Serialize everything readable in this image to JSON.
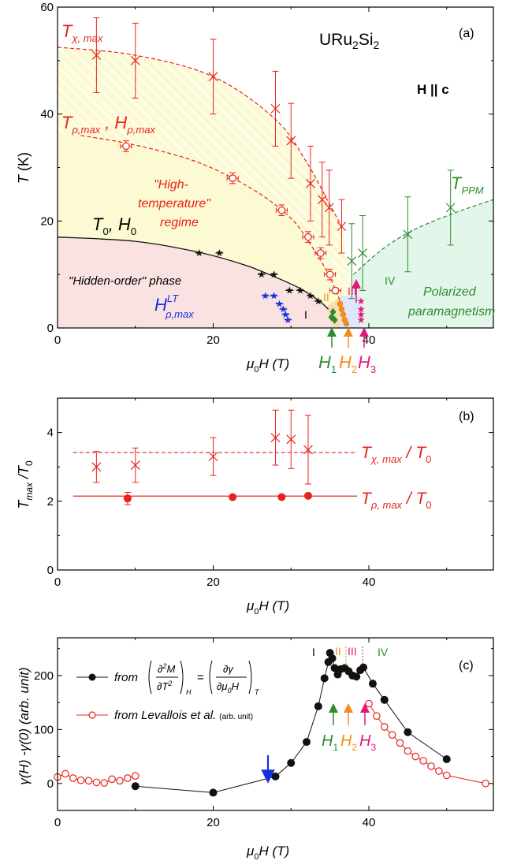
{
  "colors": {
    "red": "#e8221b",
    "green": "#2e8b2e",
    "blue": "#1431e0",
    "orange": "#f28c1e",
    "magenta": "#e0197d",
    "black": "#111111",
    "pink_fill": "#fbe2e2",
    "yellow_fill": "#fbfad2",
    "green_fill": "#e3f6ea",
    "blue_fill": "#dde6fb"
  },
  "chart_data": [
    {
      "panel": "(a)",
      "type": "scatter",
      "title": "URu2Si2",
      "field_label": "H || c",
      "xlabel": "μ0H (T)",
      "ylabel": "T (K)",
      "xlim": [
        0,
        56
      ],
      "ylim": [
        0,
        60
      ],
      "xticks": [
        "0",
        "20",
        "40"
      ],
      "yticks": [
        "0",
        "20",
        "40",
        "60"
      ],
      "region_labels": [
        "\"High-",
        "temperature\"",
        "regime",
        "\"Hidden-order\" phase",
        "Polarized",
        "paramagnetism"
      ],
      "phase_labels": [
        "I",
        "II",
        "III",
        "IV"
      ],
      "arrow_labels": [
        "H1",
        "H2",
        "H3"
      ],
      "series": [
        {
          "name": "Tχ,max",
          "marker": "x",
          "color": "red",
          "x": [
            5,
            10,
            20,
            28,
            30,
            32.5,
            34,
            34.9,
            36.5
          ],
          "y": [
            51,
            50,
            47,
            41,
            35,
            27,
            24,
            22.5,
            19
          ],
          "yerr": [
            7,
            7,
            7,
            7,
            7,
            7,
            7,
            7,
            5
          ]
        },
        {
          "name": "Tρ,max , Hρ,max",
          "marker": "open-circle",
          "color": "red",
          "x": [
            8.8,
            22.5,
            28.8,
            32.2,
            33.8,
            35,
            35.7
          ],
          "y": [
            34,
            28,
            22,
            17,
            14,
            10,
            7
          ],
          "yerr": [
            1,
            1,
            1,
            1,
            1,
            1,
            0.5
          ]
        },
        {
          "name": "T0, H0",
          "marker": "star",
          "color": "black",
          "x": [
            18.2,
            20.8,
            26.2,
            27.8,
            29.8,
            31.2,
            32.5,
            33.5
          ],
          "y": [
            14,
            14,
            10,
            10,
            7,
            7,
            6,
            5
          ]
        },
        {
          "name": "Hρ,max LT",
          "marker": "star",
          "color": "blue",
          "x": [
            26.7,
            27.8,
            28.5,
            29.0,
            29.3,
            29.6
          ],
          "y": [
            6,
            6,
            4.5,
            3.5,
            2.5,
            1.5
          ]
        },
        {
          "name": "TPPM",
          "marker": "x",
          "color": "green",
          "x": [
            37.8,
            39.2,
            45,
            50.5
          ],
          "y": [
            12.5,
            14,
            17.5,
            22.5
          ],
          "yerr": [
            7,
            7,
            7,
            7
          ]
        },
        {
          "name": "H1",
          "marker": "diamond",
          "color": "green",
          "x": [
            35.2,
            35.4,
            35.6
          ],
          "y": [
            2,
            3,
            1.5
          ]
        },
        {
          "name": "H2",
          "marker": "dot",
          "color": "orange",
          "x": [
            36.3,
            36.5,
            36.7,
            36.9,
            37.1
          ],
          "y": [
            4.5,
            3.5,
            2.5,
            1.5,
            0.8
          ]
        },
        {
          "name": "H3",
          "marker": "star",
          "color": "magenta",
          "x": [
            39,
            39,
            39,
            39
          ],
          "y": [
            5,
            3.5,
            2.5,
            1.5
          ]
        }
      ],
      "curves": {
        "Tχ,max": {
          "x": [
            0,
            10,
            20,
            28,
            32,
            35,
            36.5
          ],
          "y": [
            52.5,
            51,
            47,
            39,
            31,
            23,
            19
          ]
        },
        "Tρ,max": {
          "x": [
            3,
            10,
            18,
            25,
            30,
            33,
            35,
            36.3
          ],
          "y": [
            36,
            34.2,
            31,
            26,
            20.5,
            14.5,
            9.5,
            5
          ]
        },
        "T0": {
          "x": [
            0,
            10,
            18,
            24,
            28,
            31,
            33.5,
            34.8
          ],
          "y": [
            17,
            16.2,
            14.2,
            11.8,
            9.5,
            7.5,
            5.2,
            3.5
          ]
        },
        "TPPM": {
          "x": [
            38,
            42,
            46,
            51,
            56
          ],
          "y": [
            10,
            15,
            18.5,
            21.5,
            24
          ]
        }
      },
      "labels": {
        "tchi": "T",
        "tchi_sub": "χ, max",
        "trho": "T",
        "trho_sub": "ρ,max",
        "trho_mid": " , H",
        "hrho_sub": "ρ,max",
        "t0": "T",
        "t0_sub": "0",
        "t0_mid": ", H",
        "h0_sub": "0",
        "hlt": "H",
        "hlt_sup": "LT",
        "hlt_sub": "ρ,max",
        "tppm": "T",
        "tppm_sub": "PPM",
        "h1": "H",
        "h1_sub": "1",
        "h2": "H",
        "h2_sub": "2",
        "h3": "H",
        "h3_sub": "3",
        "xlabel_mu": "μ",
        "xlabel_sub": "0",
        "xlabel_rest": "H (T)",
        "ylabel_t": "T",
        "ylabel_unit": " (K)"
      }
    },
    {
      "panel": "(b)",
      "type": "scatter",
      "xlabel": "μ0H (T)",
      "ylabel": "Tmax / T0",
      "xlim": [
        0,
        56
      ],
      "ylim": [
        0,
        5
      ],
      "xticks": [
        "0",
        "20",
        "40"
      ],
      "yticks": [
        "0",
        "2",
        "4"
      ],
      "series": [
        {
          "name": "Tχ, max / T0",
          "marker": "x",
          "color": "red",
          "x": [
            5,
            10,
            20,
            28,
            30,
            32.2
          ],
          "y": [
            3.0,
            3.05,
            3.3,
            3.85,
            3.8,
            3.5
          ],
          "yerr": [
            0.45,
            0.5,
            0.55,
            0.8,
            0.85,
            1.0
          ],
          "mean": 3.42
        },
        {
          "name": "Tρ, max / T0",
          "marker": "filled-circle",
          "color": "red",
          "x": [
            9,
            22.5,
            28.8,
            32.2
          ],
          "y": [
            2.08,
            2.12,
            2.12,
            2.16
          ],
          "yerr": [
            0.18,
            0,
            0,
            0
          ],
          "mean": 2.15
        }
      ],
      "labels": {
        "lchi": "T",
        "lchi_sub": "χ, max",
        "lchi_rest": " / T",
        "lchi_sub0": "0",
        "lrho": "T",
        "lrho_sub": "ρ, max",
        "lrho_rest": " / T",
        "lrho_sub0": "0",
        "ylab_t": "T",
        "ylab_max": "max",
        "ylab_rest": " /T",
        "ylab_0": "0"
      }
    },
    {
      "panel": "(c)",
      "type": "line",
      "xlabel": "μ0H (T)",
      "ylabel": "γ(H) - γ(0)  (arb. unit)",
      "xlim": [
        0,
        56
      ],
      "ylim": [
        -50,
        270
      ],
      "xticks": [
        "0",
        "20",
        "40"
      ],
      "yticks": [
        "0",
        "100",
        "200"
      ],
      "phase_labels": [
        "I",
        "II",
        "III",
        "IV"
      ],
      "arrow_labels": [
        "H1",
        "H2",
        "H3"
      ],
      "series": [
        {
          "name": "from (∂²M/∂T²)H = (∂γ/∂μ0H)T",
          "marker": "filled-circle",
          "color": "black",
          "x": [
            10,
            20,
            28,
            30,
            32,
            33.5,
            34.3,
            34.8,
            35.0,
            35.3,
            35.6,
            36.0,
            36.4,
            36.9,
            37.4,
            37.9,
            38.4,
            38.9,
            39.3,
            40.5,
            42,
            45,
            50
          ],
          "y": [
            -5,
            -17,
            13,
            38,
            77,
            143,
            195,
            225,
            242,
            232,
            214,
            202,
            212,
            214,
            208,
            200,
            198,
            210,
            215,
            185,
            155,
            95,
            45
          ]
        },
        {
          "name": "from Levallois et al. (arb. unit)",
          "marker": "open-circle",
          "color": "red",
          "x": [
            0,
            1,
            2,
            3,
            4,
            5,
            6,
            7,
            8,
            9,
            10,
            40,
            41,
            42,
            43,
            44,
            45,
            46,
            47,
            48,
            49,
            50,
            55
          ],
          "y": [
            12,
            18,
            10,
            6,
            5,
            2,
            1,
            8,
            5,
            10,
            14,
            148,
            125,
            105,
            90,
            75,
            60,
            50,
            42,
            32,
            23,
            15,
            0
          ]
        }
      ],
      "labels": {
        "leg1": "from",
        "leg2": "from Levallois et al.",
        "leg2_small": "(arb. unit)",
        "ylab": "γ(H) -γ(0)  (arb. unit)"
      }
    }
  ]
}
